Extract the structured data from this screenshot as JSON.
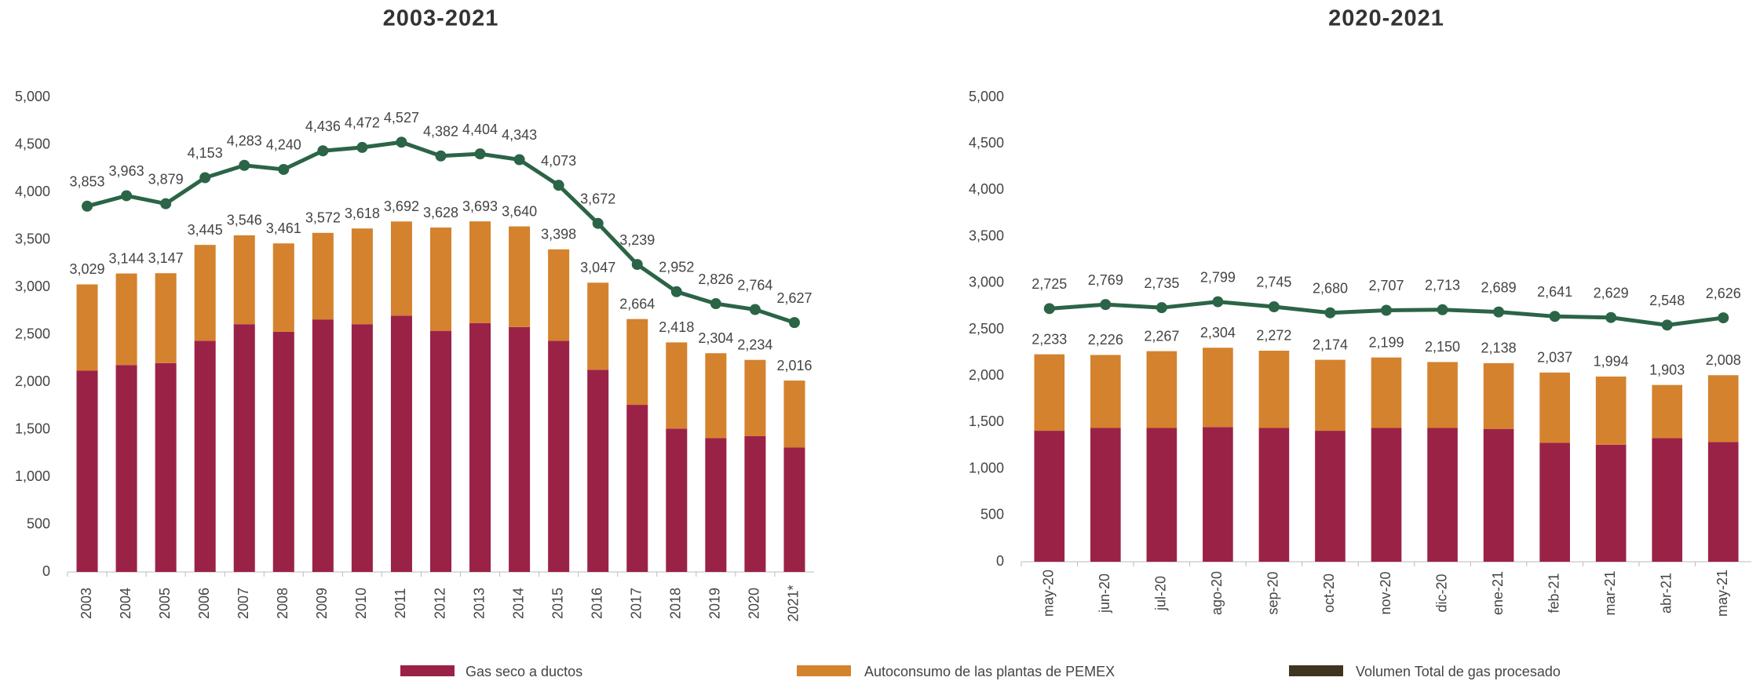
{
  "chart_data": [
    {
      "type": "bar",
      "title": "2003-2021",
      "categories": [
        "2003",
        "2004",
        "2005",
        "2006",
        "2007",
        "2008",
        "2009",
        "2010",
        "2011",
        "2012",
        "2013",
        "2014",
        "2015",
        "2016",
        "2017",
        "2018",
        "2019",
        "2020",
        "2021*"
      ],
      "series": [
        {
          "name": "Gas seco a ductos",
          "color": "#9b2247",
          "values": [
            2120,
            2180,
            2200,
            2435,
            2610,
            2530,
            2660,
            2610,
            2700,
            2540,
            2620,
            2580,
            2435,
            2130,
            1760,
            1510,
            1410,
            1430,
            1310
          ]
        },
        {
          "name": "Autoconsumo de las plantas de PEMEX",
          "color": "#d4822e",
          "values": [
            909,
            964,
            947,
            1010,
            936,
            931,
            912,
            1008,
            992,
            1088,
            1073,
            1060,
            963,
            917,
            904,
            908,
            894,
            804,
            706
          ]
        },
        {
          "name": "Volumen Total de gas procesado",
          "type": "line",
          "color": "#2b6446",
          "legend_color": "#3f3420",
          "values": [
            3853,
            3963,
            3879,
            4153,
            4283,
            4240,
            4436,
            4472,
            4527,
            4382,
            4404,
            4343,
            4073,
            3672,
            3239,
            2952,
            2826,
            2764,
            2627
          ],
          "value_labels": [
            "3,853",
            "3,963",
            "3,879",
            "4,153",
            "4,283",
            "4,240",
            "4,436",
            "4,472",
            "4,527",
            "4,382",
            "4,404",
            "4,343",
            "4,073",
            "3,672",
            "3,239",
            "2,952",
            "2,826",
            "2,764",
            "2,627"
          ]
        }
      ],
      "total_labels": [
        "3,029",
        "3,144",
        "3,147",
        "3,445",
        "3,546",
        "3,461",
        "3,572",
        "3,618",
        "3,692",
        "3,628",
        "3,693",
        "3,640",
        "3,398",
        "3,047",
        "2,664",
        "2,418",
        "2,304",
        "2,234",
        "2,016"
      ],
      "ylim": [
        0,
        5000
      ],
      "yticks": [
        0,
        500,
        {
          "value": 1000,
          "label": "1,000"
        },
        {
          "value": 1500,
          "label": "1,500"
        },
        {
          "value": 2000,
          "label": "2,000"
        },
        {
          "value": 2500,
          "label": "2,500"
        },
        {
          "value": 3000,
          "label": "3,000"
        },
        {
          "value": 3500,
          "label": "3,500"
        },
        {
          "value": 4000,
          "label": "4,000"
        },
        {
          "value": 4500,
          "label": "4,500"
        },
        {
          "value": 5000,
          "label": "5,000"
        }
      ]
    },
    {
      "type": "bar",
      "title": "2020-2021",
      "categories": [
        "may-20",
        "jun-20",
        "jul-20",
        "ago-20",
        "sep-20",
        "oct-20",
        "nov-20",
        "dic-20",
        "ene-21",
        "feb-21",
        "mar-21",
        "abr-21",
        "may-21"
      ],
      "series": [
        {
          "color": "#9b2247",
          "values": [
            1410,
            1440,
            1440,
            1450,
            1440,
            1410,
            1440,
            1440,
            1430,
            1280,
            1260,
            1330,
            1290
          ]
        },
        {
          "color": "#d4822e",
          "values": [
            823,
            786,
            827,
            854,
            832,
            764,
            759,
            710,
            708,
            757,
            734,
            573,
            718
          ]
        },
        {
          "type": "line",
          "color": "#2b6446",
          "values": [
            2725,
            2769,
            2735,
            2799,
            2745,
            2680,
            2707,
            2713,
            2689,
            2641,
            2629,
            2548,
            2626
          ],
          "value_labels": [
            "2,725",
            "2,769",
            "2,735",
            "2,799",
            "2,745",
            "2,680",
            "2,707",
            "2,713",
            "2,689",
            "2,641",
            "2,629",
            "2,548",
            "2,626"
          ]
        }
      ],
      "total_labels": [
        "2,233",
        "2,226",
        "2,267",
        "2,304",
        "2,272",
        "2,174",
        "2,199",
        "2,150",
        "2,138",
        "2,037",
        "1,994",
        "1,903",
        "2,008"
      ],
      "ylim": [
        0,
        5000
      ],
      "yticks": [
        0,
        500,
        {
          "value": 1000,
          "label": "1,000"
        },
        {
          "value": 1500,
          "label": "1,500"
        },
        {
          "value": 2000,
          "label": "2,000"
        },
        {
          "value": 2500,
          "label": "2,500"
        },
        {
          "value": 3000,
          "label": "3,000"
        },
        {
          "value": 3500,
          "label": "3,500"
        },
        {
          "value": 4000,
          "label": "4,000"
        },
        {
          "value": 4500,
          "label": "4,500"
        },
        {
          "value": 5000,
          "label": "5,000"
        }
      ]
    }
  ]
}
